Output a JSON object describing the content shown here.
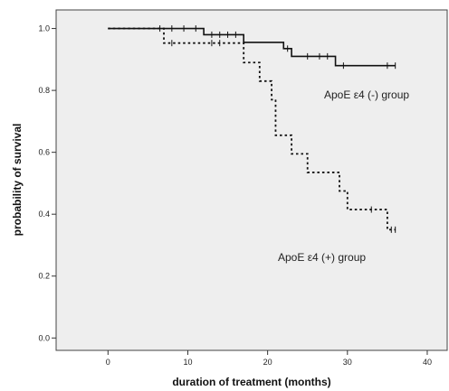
{
  "chart_data": {
    "type": "line",
    "title": "",
    "xlabel": "duration of treatment (months)",
    "ylabel": "probability of survival",
    "xlim": [
      -6.5,
      42.5
    ],
    "ylim": [
      -0.04,
      1.06
    ],
    "x_ticks": [
      0,
      10,
      20,
      30,
      40
    ],
    "y_ticks": [
      0.0,
      0.2,
      0.4,
      0.6,
      0.8,
      1.0
    ],
    "x_tick_labels": [
      "0",
      "10",
      "20",
      "30",
      "40"
    ],
    "y_tick_labels": [
      "0.0",
      "0.2",
      "0.4",
      "0.6",
      "0.8",
      "1.0"
    ],
    "grid": false,
    "background_color": "#eeeeee",
    "series": [
      {
        "name": "ApoE ε4 (-) group",
        "line_style": "solid",
        "color": "#111111",
        "steps": [
          {
            "x": 0,
            "y": 1.0
          },
          {
            "x": 12,
            "y": 0.98
          },
          {
            "x": 17,
            "y": 0.955
          },
          {
            "x": 22,
            "y": 0.935
          },
          {
            "x": 23,
            "y": 0.91
          },
          {
            "x": 28.5,
            "y": 0.88
          }
        ],
        "end_x": 36,
        "censored": [
          {
            "x": 6.5,
            "y": 1.0
          },
          {
            "x": 8,
            "y": 1.0
          },
          {
            "x": 9.5,
            "y": 1.0
          },
          {
            "x": 11,
            "y": 1.0
          },
          {
            "x": 13,
            "y": 0.98
          },
          {
            "x": 14,
            "y": 0.98
          },
          {
            "x": 15,
            "y": 0.98
          },
          {
            "x": 16,
            "y": 0.98
          },
          {
            "x": 22.5,
            "y": 0.935
          },
          {
            "x": 25,
            "y": 0.91
          },
          {
            "x": 26.5,
            "y": 0.91
          },
          {
            "x": 27.5,
            "y": 0.91
          },
          {
            "x": 29.5,
            "y": 0.88
          },
          {
            "x": 35,
            "y": 0.88
          },
          {
            "x": 36,
            "y": 0.88
          }
        ]
      },
      {
        "name": "ApoE ε4 (+) group",
        "line_style": "dotted",
        "color": "#111111",
        "steps": [
          {
            "x": 0,
            "y": 1.0
          },
          {
            "x": 7,
            "y": 0.953
          },
          {
            "x": 17,
            "y": 0.89
          },
          {
            "x": 19,
            "y": 0.83
          },
          {
            "x": 20.5,
            "y": 0.77
          },
          {
            "x": 21,
            "y": 0.655
          },
          {
            "x": 23,
            "y": 0.595
          },
          {
            "x": 25,
            "y": 0.535
          },
          {
            "x": 29,
            "y": 0.475
          },
          {
            "x": 30,
            "y": 0.415
          },
          {
            "x": 35,
            "y": 0.35
          }
        ],
        "end_x": 36,
        "censored": [
          {
            "x": 8,
            "y": 0.953
          },
          {
            "x": 13,
            "y": 0.953
          },
          {
            "x": 14,
            "y": 0.953
          },
          {
            "x": 33,
            "y": 0.415
          },
          {
            "x": 35.5,
            "y": 0.35
          },
          {
            "x": 36,
            "y": 0.35
          }
        ]
      }
    ]
  },
  "labels": {
    "negative_group": "ApoE ε4 (-) group",
    "positive_group": "ApoE ε4 (+) group"
  }
}
